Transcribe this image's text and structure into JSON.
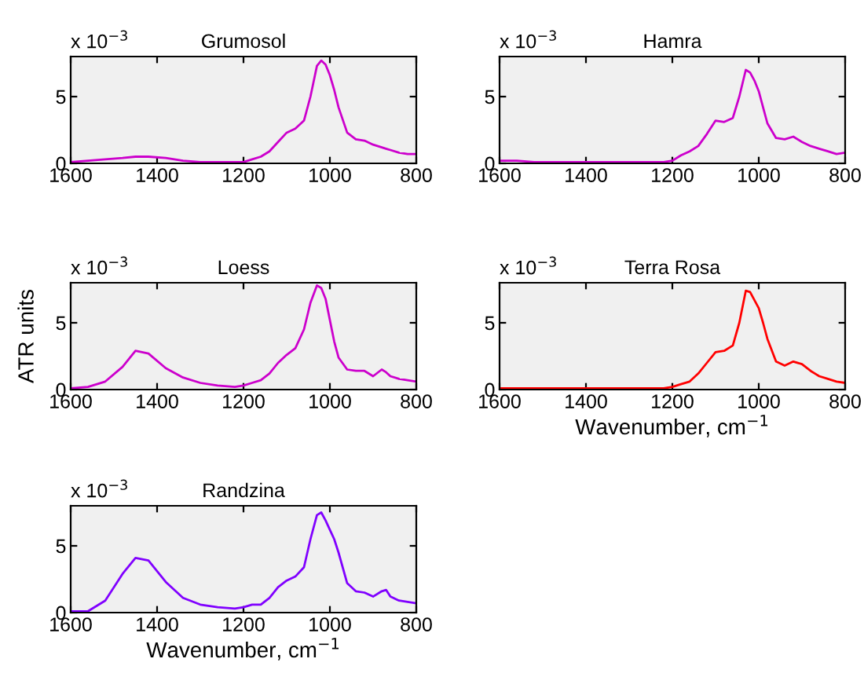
{
  "chart_data": [
    {
      "type": "line",
      "title": "Grumosol",
      "annotations": [
        "x 10$^{−3}$"
      ],
      "x": [
        1600,
        1560,
        1520,
        1480,
        1450,
        1420,
        1380,
        1340,
        1300,
        1260,
        1220,
        1200,
        1180,
        1160,
        1140,
        1120,
        1100,
        1080,
        1060,
        1045,
        1030,
        1020,
        1010,
        1000,
        990,
        980,
        960,
        940,
        920,
        900,
        880,
        870,
        860,
        840,
        820,
        800
      ],
      "series": [
        {
          "color": "#cc00cc",
          "values": [
            0.1,
            0.2,
            0.3,
            0.4,
            0.5,
            0.5,
            0.4,
            0.2,
            0.1,
            0.1,
            0.1,
            0.1,
            0.3,
            0.5,
            0.9,
            1.6,
            2.3,
            2.6,
            3.2,
            5.0,
            7.3,
            7.7,
            7.4,
            6.6,
            5.5,
            4.2,
            2.3,
            1.8,
            1.7,
            1.4,
            1.2,
            1.1,
            1.0,
            0.8,
            0.7,
            0.7
          ]
        }
      ],
      "xlim": [
        1600,
        800
      ],
      "xticks": [
        1600,
        1400,
        1200,
        1000,
        800
      ],
      "ylim": [
        0,
        8
      ],
      "yticks": [
        0,
        5
      ],
      "grid": false,
      "legend": false
    },
    {
      "type": "line",
      "title": "Hamra",
      "annotations": [
        "x 10$^{−3}$"
      ],
      "x": [
        1600,
        1560,
        1520,
        1480,
        1450,
        1420,
        1380,
        1340,
        1300,
        1260,
        1220,
        1200,
        1180,
        1160,
        1140,
        1120,
        1100,
        1080,
        1060,
        1045,
        1030,
        1020,
        1010,
        1000,
        990,
        980,
        960,
        940,
        920,
        900,
        880,
        870,
        860,
        840,
        820,
        800
      ],
      "series": [
        {
          "color": "#cc00cc",
          "values": [
            0.2,
            0.2,
            0.1,
            0.1,
            0.1,
            0.1,
            0.1,
            0.1,
            0.1,
            0.1,
            0.1,
            0.2,
            0.6,
            0.9,
            1.3,
            2.2,
            3.2,
            3.1,
            3.4,
            5.0,
            7.0,
            6.8,
            6.2,
            5.4,
            4.2,
            3.0,
            1.9,
            1.8,
            2.0,
            1.6,
            1.3,
            1.2,
            1.1,
            0.9,
            0.7,
            0.8
          ]
        }
      ],
      "xlim": [
        1600,
        800
      ],
      "xticks": [
        1600,
        1400,
        1200,
        1000,
        800
      ],
      "ylim": [
        0,
        8
      ],
      "yticks": [
        0,
        5
      ],
      "grid": false,
      "legend": false
    },
    {
      "type": "line",
      "title": "Loess",
      "ylabel": "ATR units",
      "annotations": [
        "x 10$^{−3}$"
      ],
      "x": [
        1600,
        1560,
        1520,
        1480,
        1450,
        1420,
        1380,
        1340,
        1300,
        1260,
        1220,
        1200,
        1180,
        1160,
        1140,
        1120,
        1100,
        1080,
        1060,
        1045,
        1030,
        1020,
        1010,
        1000,
        990,
        980,
        960,
        940,
        920,
        900,
        880,
        870,
        860,
        840,
        820,
        800
      ],
      "series": [
        {
          "color": "#cc00cc",
          "values": [
            0.1,
            0.2,
            0.6,
            1.7,
            2.9,
            2.7,
            1.6,
            0.9,
            0.5,
            0.3,
            0.2,
            0.3,
            0.5,
            0.7,
            1.2,
            2.0,
            2.6,
            3.1,
            4.5,
            6.5,
            7.8,
            7.6,
            6.8,
            5.2,
            3.6,
            2.4,
            1.5,
            1.4,
            1.4,
            1.0,
            1.5,
            1.3,
            1.0,
            0.8,
            0.7,
            0.6
          ]
        }
      ],
      "xlim": [
        1600,
        800
      ],
      "xticks": [
        1600,
        1400,
        1200,
        1000,
        800
      ],
      "ylim": [
        0,
        8
      ],
      "yticks": [
        0,
        5
      ],
      "grid": false,
      "legend": false
    },
    {
      "type": "line",
      "title": "Terra Rosa",
      "xlabel": "Wavenumber, cm$^{−1}$",
      "annotations": [
        "x 10$^{−3}$"
      ],
      "x": [
        1600,
        1560,
        1520,
        1480,
        1450,
        1420,
        1380,
        1340,
        1300,
        1260,
        1220,
        1200,
        1180,
        1160,
        1140,
        1120,
        1100,
        1080,
        1060,
        1045,
        1030,
        1020,
        1010,
        1000,
        990,
        980,
        960,
        940,
        920,
        900,
        880,
        870,
        860,
        840,
        820,
        800
      ],
      "series": [
        {
          "color": "#ff0000",
          "values": [
            0.1,
            0.1,
            0.1,
            0.1,
            0.1,
            0.1,
            0.1,
            0.1,
            0.1,
            0.1,
            0.1,
            0.2,
            0.4,
            0.6,
            1.2,
            2.0,
            2.8,
            2.9,
            3.3,
            5.0,
            7.4,
            7.3,
            6.7,
            6.1,
            5.0,
            3.8,
            2.1,
            1.8,
            2.1,
            1.9,
            1.4,
            1.2,
            1.0,
            0.8,
            0.6,
            0.5
          ]
        }
      ],
      "xlim": [
        1600,
        800
      ],
      "xticks": [
        1600,
        1400,
        1200,
        1000,
        800
      ],
      "ylim": [
        0,
        8
      ],
      "yticks": [
        0,
        5
      ],
      "grid": false,
      "legend": false
    },
    {
      "type": "line",
      "title": "Randzina",
      "xlabel": "Wavenumber, cm$^{−1}$",
      "annotations": [
        "x 10$^{−3}$"
      ],
      "x": [
        1600,
        1560,
        1520,
        1480,
        1450,
        1420,
        1380,
        1340,
        1300,
        1260,
        1220,
        1200,
        1180,
        1160,
        1140,
        1120,
        1100,
        1080,
        1060,
        1045,
        1030,
        1020,
        1010,
        1000,
        990,
        980,
        960,
        940,
        920,
        900,
        880,
        870,
        860,
        840,
        820,
        800
      ],
      "series": [
        {
          "color": "#8000ff",
          "values": [
            0.1,
            0.1,
            0.9,
            2.9,
            4.1,
            3.9,
            2.3,
            1.1,
            0.6,
            0.4,
            0.3,
            0.4,
            0.6,
            0.6,
            1.1,
            1.9,
            2.4,
            2.7,
            3.4,
            5.5,
            7.3,
            7.5,
            6.9,
            6.2,
            5.5,
            4.5,
            2.2,
            1.6,
            1.5,
            1.2,
            1.6,
            1.7,
            1.2,
            0.9,
            0.8,
            0.7
          ]
        }
      ],
      "xlim": [
        1600,
        800
      ],
      "xticks": [
        1600,
        1400,
        1200,
        1000,
        800
      ],
      "ylim": [
        0,
        8
      ],
      "yticks": [
        0,
        5
      ],
      "grid": false,
      "legend": false
    }
  ]
}
